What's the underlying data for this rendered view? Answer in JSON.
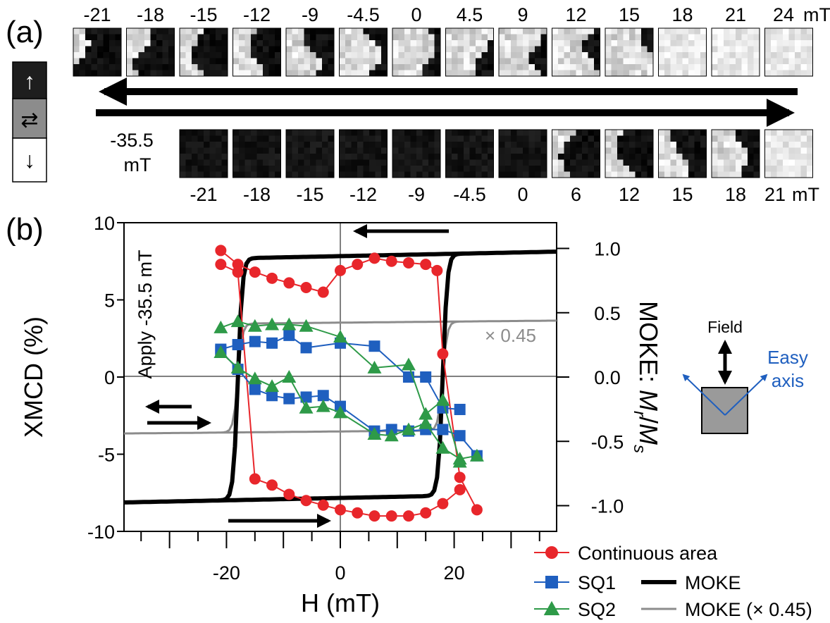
{
  "panel_a": {
    "label": "(a)",
    "top_fields": [
      "-21",
      "-18",
      "-15",
      "-12",
      "-9",
      "-4.5",
      "0",
      "4.5",
      "9",
      "12",
      "15",
      "18",
      "21",
      "24"
    ],
    "top_unit": "mT",
    "top_fill": [
      0.15,
      0.35,
      0.4,
      0.5,
      0.55,
      0.7,
      0.75,
      0.8,
      0.85,
      0.85,
      0.9,
      0.92,
      0.95,
      0.95
    ],
    "bottom_fields": [
      "-21",
      "-18",
      "-15",
      "-12",
      "-9",
      "-4.5",
      "0",
      "6",
      "12",
      "15",
      "18",
      "21"
    ],
    "bottom_unit": "mT",
    "bottom_fill": [
      0.02,
      0.02,
      0.02,
      0.02,
      0.02,
      0.02,
      0.02,
      0.35,
      0.4,
      0.45,
      0.6,
      0.95
    ],
    "start_value": "-35.5",
    "start_unit": "mT",
    "legend_symbols": [
      "↑",
      "⇄",
      "↓"
    ],
    "legend_colors": [
      "#1e1e1e",
      "#8c8c8c",
      "#ffffff"
    ]
  },
  "panel_b": {
    "label": "(b)",
    "annotation": "Apply -35.5 mT",
    "scale_label": "× 0.45",
    "inset": {
      "field_label": "Field",
      "easy_axis_line1": "Easy",
      "easy_axis_line2": "axis",
      "easy_axis_color": "#1f5fbf"
    }
  },
  "chart_data": {
    "type": "line",
    "title": "",
    "xlabel": "H (mT)",
    "ylabel": "XMCD (%)",
    "y2label_prefix": "MOKE: ",
    "y2label_math": "M",
    "y2label_sub1": "r",
    "y2label_sep": "/",
    "y2label_sub2": "s",
    "xlim": [
      -38,
      38
    ],
    "ylim": [
      10,
      -10
    ],
    "y2lim": [
      -1.2,
      1.2
    ],
    "x_ticks": [
      -20,
      0,
      20
    ],
    "x_tick_labels": [
      "-20",
      "0",
      "20"
    ],
    "y_ticks": [
      -10,
      -5,
      0,
      5,
      10
    ],
    "y_tick_labels": [
      "-10",
      "-5",
      "0",
      "5",
      "10"
    ],
    "y2_ticks": [
      1.0,
      0.5,
      0.0,
      -0.5,
      -1.0
    ],
    "y2_tick_labels": [
      "1.0",
      "0.5",
      "0.0",
      "-0.5",
      "-1.0"
    ],
    "series": [
      {
        "name": "Continuous area",
        "color": "#e8262b",
        "marker": "circle",
        "axis": "left",
        "x": [
          -21,
          -18,
          -15,
          -12,
          -9,
          -6,
          -3,
          0,
          3,
          6,
          9,
          12,
          15,
          17,
          18,
          21,
          24
        ],
        "y": [
          8.2,
          7.3,
          6.8,
          6.4,
          6.1,
          5.8,
          5.5,
          6.9,
          7.3,
          7.7,
          7.5,
          7.4,
          7.3,
          6.9,
          1.5,
          -6.5,
          -8.6
        ],
        "x_desc": [
          21,
          18,
          15,
          12,
          9,
          6,
          3,
          0,
          -3,
          -6,
          -9,
          -12,
          -15,
          -18,
          -21
        ],
        "y_desc": [
          -7.3,
          -8.2,
          -8.8,
          -9.0,
          -9.0,
          -9.0,
          -8.8,
          -8.6,
          -8.3,
          -8.0,
          -7.6,
          -7.0,
          -6.6,
          6.8,
          7.3
        ]
      },
      {
        "name": "SQ1",
        "color": "#1f5fbf",
        "marker": "square",
        "axis": "left",
        "x": [
          -21,
          -18,
          -15,
          -12,
          -9,
          -6,
          0,
          6,
          12,
          15,
          18,
          21
        ],
        "y": [
          1.8,
          2.1,
          2.3,
          2.2,
          2.7,
          1.9,
          2.2,
          2.0,
          0.0,
          0.0,
          -2.0,
          -2.1
        ],
        "x_desc": [
          24,
          21,
          18,
          15,
          12,
          9,
          6,
          0,
          -3,
          -6,
          -9,
          -12,
          -15,
          -18,
          -21
        ],
        "y_desc": [
          -5.1,
          -3.8,
          -3.4,
          -3.4,
          -3.5,
          -3.4,
          -3.5,
          -1.9,
          -1.2,
          -1.3,
          -1.4,
          -1.2,
          -0.8,
          0.5,
          1.7
        ]
      },
      {
        "name": "SQ2",
        "color": "#2e9a48",
        "marker": "triangle",
        "axis": "left",
        "x": [
          -21,
          -18,
          -15,
          -12,
          -9,
          -6,
          0,
          6,
          12,
          15,
          18,
          21
        ],
        "y": [
          3.2,
          3.6,
          3.3,
          3.4,
          3.4,
          3.3,
          2.6,
          0.6,
          0.8,
          -2.4,
          -1.5,
          -5.5
        ],
        "x_desc": [
          24,
          21,
          18,
          15,
          12,
          9,
          6,
          0,
          -3,
          -6,
          -9,
          -12,
          -15,
          -18,
          -21
        ],
        "y_desc": [
          -5.1,
          -5.3,
          -4.6,
          -3.0,
          -3.4,
          -3.8,
          -3.7,
          -2.3,
          -1.9,
          -2.0,
          0.0,
          -0.6,
          -0.1,
          0.6,
          1.6
        ]
      },
      {
        "name": "MOKE",
        "color": "#000000",
        "axis": "right",
        "coercive_field": 18,
        "saturation": 0.94
      },
      {
        "name": "MOKE (× 0.45)",
        "color": "#8c8c8c",
        "axis": "right",
        "factor": 0.45
      }
    ],
    "legend": {
      "position": "bottom-right",
      "entries": [
        "Continuous area",
        "SQ1",
        "SQ2",
        "MOKE",
        "MOKE (× 0.45)"
      ]
    }
  }
}
